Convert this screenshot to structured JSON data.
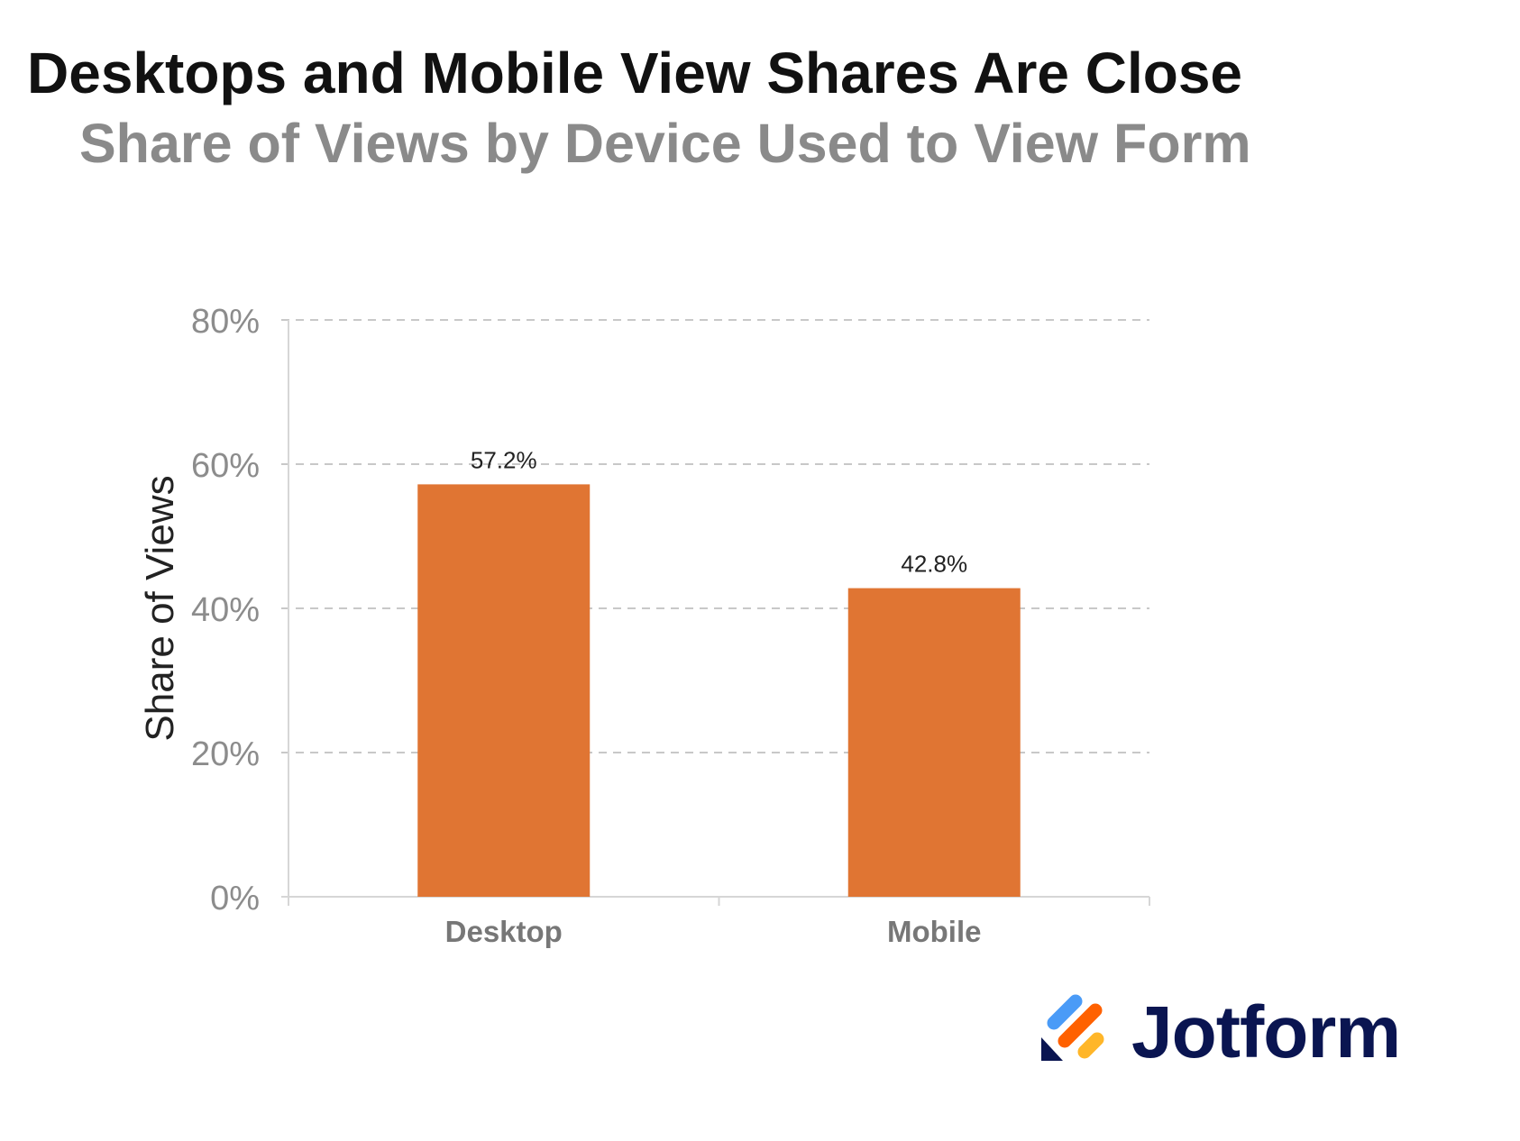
{
  "chart_data": {
    "type": "bar",
    "title": "Desktops and Mobile View Shares Are Close",
    "subtitle": "Share of Views by Device Used to View Form",
    "ylabel": "Share of Views",
    "xlabel": "",
    "categories": [
      "Desktop",
      "Mobile"
    ],
    "values": [
      57.2,
      42.8
    ],
    "data_labels": [
      "57.2%",
      "42.8%"
    ],
    "ylim": [
      0,
      80
    ],
    "yticks": [
      0,
      20,
      40,
      60,
      80
    ],
    "ytick_labels": [
      "0%",
      "20%",
      "40%",
      "60%",
      "80%"
    ],
    "grid": true,
    "legend": "none",
    "bar_color": "#E07533"
  },
  "brand": {
    "name": "Jotform",
    "colors": {
      "blue": "#4A9BF7",
      "orange": "#FF6100",
      "yellow": "#FFB629",
      "navy": "#0A1551"
    }
  }
}
